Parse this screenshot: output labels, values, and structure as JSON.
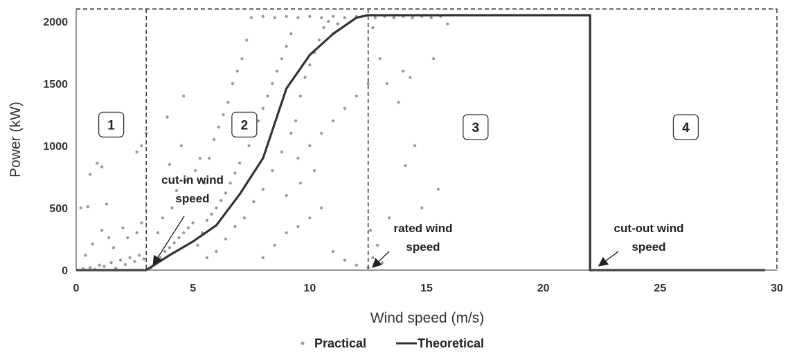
{
  "chart_data": {
    "type": "scatter",
    "xlabel": "Wind speed (m/s)",
    "ylabel": "Power (kW)",
    "xlim": [
      0,
      30
    ],
    "ylim": [
      0,
      2100
    ],
    "x_ticks": [
      0,
      5,
      10,
      15,
      20,
      25,
      30
    ],
    "y_ticks": [
      0,
      500,
      1000,
      1500,
      2000
    ],
    "grid": false,
    "legend_placement": "bottom-center",
    "series": [
      {
        "name": "Practical",
        "kind": "scatter",
        "color": "#9b9b9b",
        "note_density": "dense cloud; points sampled",
        "points": [
          [
            0.3,
            10
          ],
          [
            0.6,
            20
          ],
          [
            0.8,
            5
          ],
          [
            1.0,
            40
          ],
          [
            1.2,
            30
          ],
          [
            1.5,
            60
          ],
          [
            1.7,
            15
          ],
          [
            1.9,
            80
          ],
          [
            2.1,
            45
          ],
          [
            2.3,
            100
          ],
          [
            2.5,
            70
          ],
          [
            2.7,
            120
          ],
          [
            2.9,
            90
          ],
          [
            0.4,
            120
          ],
          [
            0.7,
            210
          ],
          [
            1.1,
            320
          ],
          [
            1.4,
            260
          ],
          [
            1.6,
            180
          ],
          [
            2.0,
            340
          ],
          [
            2.2,
            260
          ],
          [
            2.6,
            300
          ],
          [
            2.8,
            380
          ],
          [
            0.2,
            500
          ],
          [
            0.5,
            510
          ],
          [
            1.3,
            530
          ],
          [
            0.6,
            770
          ],
          [
            0.9,
            860
          ],
          [
            1.1,
            830
          ],
          [
            2.6,
            950
          ],
          [
            2.8,
            1000
          ],
          [
            3.0,
            1100
          ],
          [
            1.0,
            1180
          ],
          [
            1.3,
            1210
          ],
          [
            3.2,
            20
          ],
          [
            3.4,
            60
          ],
          [
            3.6,
            100
          ],
          [
            3.8,
            150
          ],
          [
            4.0,
            180
          ],
          [
            4.2,
            220
          ],
          [
            4.4,
            260
          ],
          [
            4.6,
            300
          ],
          [
            4.8,
            340
          ],
          [
            5.0,
            380
          ],
          [
            3.5,
            300
          ],
          [
            3.7,
            420
          ],
          [
            4.1,
            500
          ],
          [
            4.3,
            640
          ],
          [
            4.7,
            720
          ],
          [
            5.1,
            800
          ],
          [
            5.3,
            900
          ],
          [
            4.5,
            1000
          ],
          [
            4.0,
            850
          ],
          [
            3.9,
            1230
          ],
          [
            4.6,
            1400
          ],
          [
            5.2,
            200
          ],
          [
            5.4,
            300
          ],
          [
            5.6,
            400
          ],
          [
            5.8,
            450
          ],
          [
            6.0,
            500
          ],
          [
            6.2,
            560
          ],
          [
            6.4,
            620
          ],
          [
            6.6,
            700
          ],
          [
            6.8,
            780
          ],
          [
            7.0,
            860
          ],
          [
            5.5,
            700
          ],
          [
            5.7,
            900
          ],
          [
            5.9,
            1050
          ],
          [
            6.1,
            1150
          ],
          [
            6.3,
            1250
          ],
          [
            6.5,
            1350
          ],
          [
            6.7,
            1500
          ],
          [
            6.9,
            1600
          ],
          [
            7.1,
            1700
          ],
          [
            7.3,
            1850
          ],
          [
            5.6,
            100
          ],
          [
            6.0,
            150
          ],
          [
            6.4,
            250
          ],
          [
            6.8,
            350
          ],
          [
            7.2,
            420
          ],
          [
            7.6,
            550
          ],
          [
            8.0,
            650
          ],
          [
            8.4,
            800
          ],
          [
            8.8,
            950
          ],
          [
            9.2,
            1100
          ],
          [
            7.4,
            1000
          ],
          [
            7.6,
            1100
          ],
          [
            7.8,
            1200
          ],
          [
            8.0,
            1300
          ],
          [
            8.2,
            1400
          ],
          [
            8.4,
            1500
          ],
          [
            8.6,
            1600
          ],
          [
            8.8,
            1700
          ],
          [
            9.0,
            1800
          ],
          [
            9.2,
            1900
          ],
          [
            7.5,
            2030
          ],
          [
            8.0,
            2040
          ],
          [
            8.5,
            2030
          ],
          [
            9.0,
            2040
          ],
          [
            9.5,
            2030
          ],
          [
            10.0,
            2040
          ],
          [
            10.5,
            2030
          ],
          [
            11.0,
            2040
          ],
          [
            11.5,
            2030
          ],
          [
            12.0,
            2040
          ],
          [
            9.4,
            1200
          ],
          [
            9.6,
            1400
          ],
          [
            9.8,
            1550
          ],
          [
            10.0,
            1650
          ],
          [
            10.2,
            1750
          ],
          [
            10.4,
            1850
          ],
          [
            10.6,
            1950
          ],
          [
            10.8,
            2000
          ],
          [
            11.0,
            1900
          ],
          [
            11.2,
            1980
          ],
          [
            9.5,
            900
          ],
          [
            10.0,
            1000
          ],
          [
            10.5,
            1100
          ],
          [
            11.0,
            1200
          ],
          [
            11.5,
            1300
          ],
          [
            12.0,
            1400
          ],
          [
            12.5,
            1500
          ],
          [
            9.0,
            600
          ],
          [
            9.6,
            700
          ],
          [
            10.2,
            800
          ],
          [
            8.0,
            100
          ],
          [
            8.5,
            200
          ],
          [
            9.0,
            300
          ],
          [
            9.5,
            350
          ],
          [
            10.0,
            420
          ],
          [
            10.5,
            500
          ],
          [
            11.0,
            150
          ],
          [
            11.5,
            80
          ],
          [
            12.0,
            40
          ],
          [
            12.5,
            20
          ],
          [
            12.8,
            2030
          ],
          [
            13.2,
            2040
          ],
          [
            13.6,
            2030
          ],
          [
            14.0,
            2040
          ],
          [
            14.4,
            2030
          ],
          [
            14.8,
            2040
          ],
          [
            15.2,
            2030
          ],
          [
            15.6,
            2040
          ],
          [
            15.9,
            1980
          ],
          [
            12.7,
            1950
          ],
          [
            13.0,
            1700
          ],
          [
            13.3,
            1500
          ],
          [
            13.8,
            1350
          ],
          [
            14.0,
            1600
          ],
          [
            14.3,
            1550
          ],
          [
            14.5,
            1000
          ],
          [
            14.1,
            840
          ],
          [
            15.5,
            650
          ],
          [
            14.8,
            500
          ],
          [
            15.3,
            1700
          ],
          [
            12.7,
            100
          ],
          [
            13.1,
            60
          ],
          [
            12.9,
            200
          ],
          [
            13.4,
            420
          ],
          [
            12.6,
            320
          ]
        ]
      },
      {
        "name": "Theoretical",
        "kind": "line",
        "color": "#333333",
        "x": [
          0,
          3,
          4,
          5,
          6,
          7,
          8,
          9,
          10,
          11,
          12,
          12.5,
          13,
          22,
          22,
          29.5
        ],
        "y": [
          0,
          0,
          120,
          230,
          360,
          610,
          900,
          1460,
          1730,
          1900,
          2030,
          2050,
          2050,
          2050,
          0,
          0
        ]
      }
    ],
    "region_boundaries": [
      3,
      12.5
    ],
    "regions": [
      {
        "label": "1",
        "x": 1.5,
        "y": 1170
      },
      {
        "label": "2",
        "x": 7.2,
        "y": 1170
      },
      {
        "label": "3",
        "x": 17.1,
        "y": 1150
      },
      {
        "label": "4",
        "x": 26.1,
        "y": 1150
      }
    ],
    "annotations": [
      {
        "lines": [
          "cut-in wind",
          "speed"
        ],
        "target_x": 3,
        "target_y": 0
      },
      {
        "lines": [
          "rated wind",
          "speed"
        ],
        "target_x": 12.5,
        "target_y": 0
      },
      {
        "lines": [
          "cut-out wind",
          "speed"
        ],
        "target_x": 22,
        "target_y": 0
      }
    ]
  },
  "legend": [
    {
      "label": "Practical",
      "symbol": "dot"
    },
    {
      "label": "Theoretical",
      "symbol": "line"
    }
  ]
}
